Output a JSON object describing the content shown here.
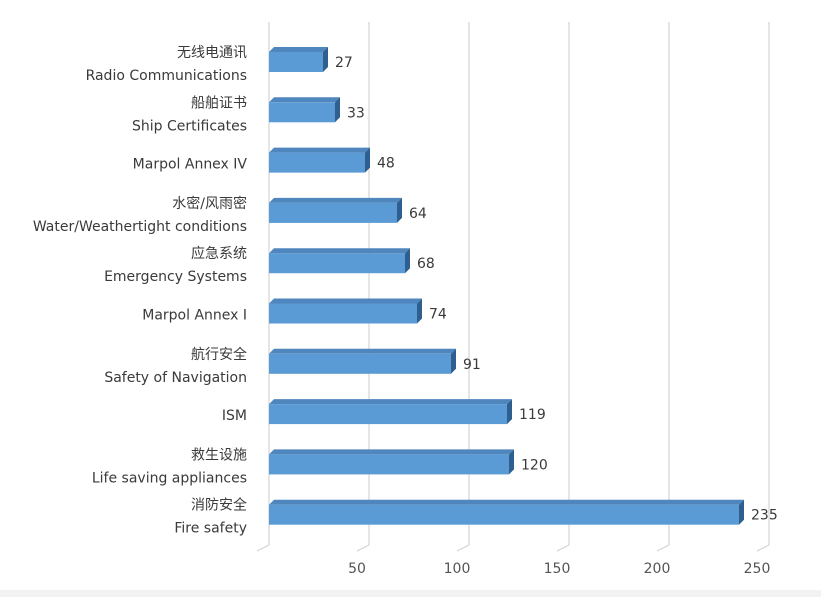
{
  "chart_data": {
    "type": "bar",
    "orientation": "horizontal",
    "style": "3d",
    "categories": [
      {
        "zh": "无线电通讯",
        "en": "Radio Communications"
      },
      {
        "zh": "船舶证书",
        "en": "Ship Certificates"
      },
      {
        "zh": "",
        "en": "Marpol Annex IV"
      },
      {
        "zh": "水密/风雨密",
        "en": "Water/Weathertight conditions"
      },
      {
        "zh": "应急系统",
        "en": "Emergency Systems"
      },
      {
        "zh": "",
        "en": "Marpol Annex I"
      },
      {
        "zh": "航行安全",
        "en": "Safety of Navigation"
      },
      {
        "zh": "",
        "en": "ISM"
      },
      {
        "zh": "救生设施",
        "en": "Life saving appliances"
      },
      {
        "zh": "消防安全",
        "en": "Fire safety"
      }
    ],
    "values": [
      27,
      33,
      48,
      64,
      68,
      74,
      91,
      119,
      120,
      235
    ],
    "xlim": [
      0,
      250
    ],
    "xticks": [
      50,
      100,
      150,
      200,
      250
    ],
    "grid": true,
    "colors": {
      "bar_front": "#5b9bd5",
      "bar_top": "#4f86bd",
      "bar_side": "#2f5f8f",
      "grid": "#d4d4d4"
    }
  }
}
